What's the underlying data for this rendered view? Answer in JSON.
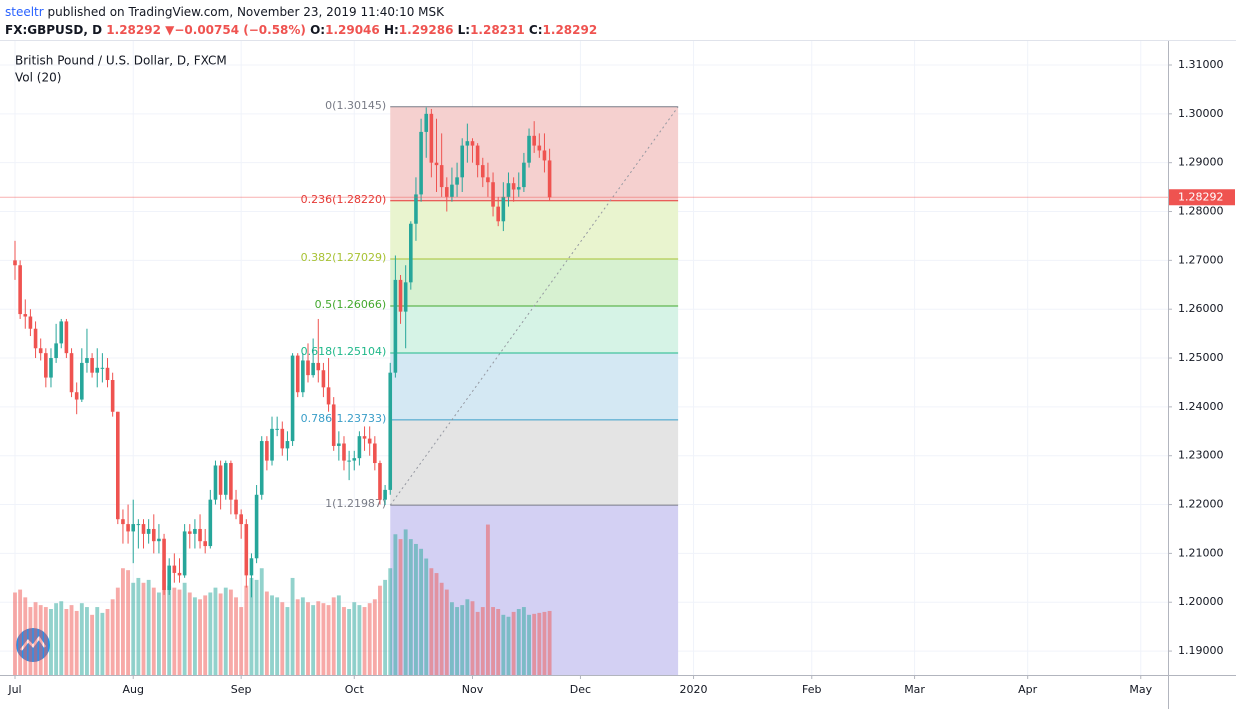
{
  "header": {
    "author": "steeltr",
    "published": "published on TradingView.com, November 23, 2019 11:40:10 MSK",
    "symbol": "FX:GBPUSD, D",
    "last": "1.28292",
    "arrow": "▼",
    "change": "−0.00754 (−0.58%)",
    "o_label": "O:",
    "o": "1.29046",
    "h_label": "H:",
    "h": "1.29286",
    "l_label": "L:",
    "l": "1.28231",
    "c_label": "C:",
    "c": "1.28292"
  },
  "chart_data": {
    "type": "candlestick",
    "title": "British Pound / U.S. Dollar, D, FXCM",
    "volume_title": "Vol (20)",
    "up_color": "#26a69a",
    "down_color": "#ef5350",
    "volume_up_color": "rgba(38,166,154,0.5)",
    "volume_down_color": "rgba(239,83,80,0.5)",
    "open": [
      1.27,
      1.269,
      1.259,
      1.2585,
      1.256,
      1.252,
      1.251,
      1.246,
      1.25,
      1.253,
      1.2575,
      1.251,
      1.243,
      1.2415,
      1.249,
      1.25,
      1.247,
      1.248,
      1.248,
      1.2455,
      1.239,
      1.217,
      1.216,
      1.2145,
      1.216,
      1.216,
      1.214,
      1.215,
      1.2125,
      1.213,
      1.2025,
      1.2075,
      1.206,
      1.2055,
      1.2145,
      1.214,
      1.215,
      1.2125,
      1.2115,
      1.221,
      1.228,
      1.222,
      1.2285,
      1.221,
      1.218,
      1.216,
      1.2055,
      1.209,
      1.222,
      1.233,
      1.229,
      1.2355,
      1.2355,
      1.2315,
      1.233,
      1.2505,
      1.243,
      1.2495,
      1.2465,
      1.249,
      1.2475,
      1.244,
      1.2405,
      1.232,
      1.2325,
      1.229,
      1.229,
      1.2295,
      1.234,
      1.2335,
      1.2325,
      1.2285,
      1.221,
      1.223,
      1.247,
      1.266,
      1.2595,
      1.2655,
      1.2775,
      1.2835,
      1.2963,
      1.3,
      1.29,
      1.2895,
      1.285,
      1.283,
      1.2855,
      1.287,
      1.2935,
      1.2944,
      1.2935,
      1.2895,
      1.287,
      1.286,
      1.281,
      1.278,
      1.283,
      1.2858,
      1.2845,
      1.285,
      1.29,
      1.2955,
      1.2935,
      1.2925,
      1.29046
    ],
    "high": [
      1.274,
      1.27,
      1.262,
      1.26,
      1.2575,
      1.254,
      1.252,
      1.252,
      1.257,
      1.258,
      1.258,
      1.252,
      1.245,
      1.252,
      1.256,
      1.251,
      1.252,
      1.251,
      1.25,
      1.247,
      1.239,
      1.219,
      1.22,
      1.221,
      1.217,
      1.217,
      1.217,
      1.218,
      1.216,
      1.214,
      1.209,
      1.21,
      1.209,
      1.216,
      1.216,
      1.217,
      1.218,
      1.215,
      1.223,
      1.229,
      1.229,
      1.229,
      1.229,
      1.223,
      1.219,
      1.217,
      1.21,
      1.224,
      1.234,
      1.234,
      1.238,
      1.238,
      1.237,
      1.235,
      1.251,
      1.251,
      1.251,
      1.253,
      1.254,
      1.258,
      1.249,
      1.25,
      1.242,
      1.235,
      1.234,
      1.231,
      1.231,
      1.235,
      1.236,
      1.236,
      1.234,
      1.229,
      1.224,
      1.249,
      1.271,
      1.267,
      1.269,
      1.278,
      1.287,
      1.299,
      1.3013,
      1.301,
      1.299,
      1.296,
      1.287,
      1.289,
      1.29,
      1.295,
      1.298,
      1.295,
      1.294,
      1.291,
      1.29,
      1.288,
      1.283,
      1.286,
      1.288,
      1.287,
      1.288,
      1.292,
      1.297,
      1.2985,
      1.296,
      1.296,
      1.29286
    ],
    "low": [
      1.266,
      1.258,
      1.256,
      1.2545,
      1.25,
      1.2495,
      1.244,
      1.244,
      1.249,
      1.252,
      1.25,
      1.242,
      1.2385,
      1.241,
      1.247,
      1.246,
      1.244,
      1.245,
      1.244,
      1.238,
      1.216,
      1.212,
      1.212,
      1.208,
      1.211,
      1.211,
      1.212,
      1.21,
      1.21,
      1.2015,
      1.2015,
      1.204,
      1.204,
      1.205,
      1.211,
      1.211,
      1.211,
      1.21,
      1.211,
      1.22,
      1.219,
      1.221,
      1.218,
      1.217,
      1.213,
      1.203,
      1.201,
      1.208,
      1.221,
      1.227,
      1.228,
      1.234,
      1.23,
      1.229,
      1.232,
      1.242,
      1.242,
      1.245,
      1.246,
      1.245,
      1.242,
      1.239,
      1.231,
      1.229,
      1.227,
      1.225,
      1.227,
      1.228,
      1.231,
      1.23,
      1.227,
      1.22,
      1.2199,
      1.222,
      1.246,
      1.257,
      1.252,
      1.264,
      1.274,
      1.282,
      1.291,
      1.287,
      1.284,
      1.283,
      1.28,
      1.282,
      1.283,
      1.284,
      1.29,
      1.29,
      1.287,
      1.285,
      1.283,
      1.279,
      1.277,
      1.276,
      1.281,
      1.282,
      1.283,
      1.284,
      1.289,
      1.292,
      1.291,
      1.288,
      1.28231
    ],
    "close": [
      1.269,
      1.259,
      1.2585,
      1.256,
      1.252,
      1.251,
      1.246,
      1.25,
      1.253,
      1.2575,
      1.251,
      1.243,
      1.2415,
      1.249,
      1.25,
      1.247,
      1.248,
      1.248,
      1.2455,
      1.239,
      1.217,
      1.216,
      1.2145,
      1.216,
      1.216,
      1.214,
      1.215,
      1.2125,
      1.213,
      1.2025,
      1.2075,
      1.206,
      1.2055,
      1.2145,
      1.214,
      1.215,
      1.2125,
      1.2115,
      1.221,
      1.228,
      1.222,
      1.2285,
      1.221,
      1.218,
      1.216,
      1.2055,
      1.209,
      1.222,
      1.233,
      1.229,
      1.2355,
      1.2355,
      1.2315,
      1.233,
      1.2505,
      1.243,
      1.2495,
      1.2465,
      1.249,
      1.2475,
      1.244,
      1.2405,
      1.232,
      1.2325,
      1.229,
      1.229,
      1.2295,
      1.234,
      1.2335,
      1.2325,
      1.2285,
      1.221,
      1.223,
      1.247,
      1.266,
      1.2595,
      1.2655,
      1.2775,
      1.2835,
      1.2963,
      1.3,
      1.29,
      1.2895,
      1.285,
      1.283,
      1.2855,
      1.287,
      1.2935,
      1.2944,
      1.2935,
      1.2895,
      1.287,
      1.286,
      1.281,
      1.278,
      1.283,
      1.2858,
      1.2845,
      1.285,
      1.29,
      1.2955,
      1.2935,
      1.2925,
      1.29046,
      1.28292
    ],
    "volume": [
      85,
      88,
      80,
      70,
      75,
      72,
      70,
      68,
      74,
      76,
      68,
      72,
      66,
      74,
      70,
      62,
      70,
      64,
      68,
      78,
      90,
      110,
      108,
      95,
      100,
      95,
      98,
      90,
      85,
      108,
      92,
      90,
      88,
      95,
      85,
      80,
      78,
      82,
      85,
      90,
      84,
      90,
      88,
      80,
      70,
      92,
      100,
      98,
      110,
      86,
      82,
      80,
      75,
      70,
      100,
      78,
      80,
      75,
      72,
      76,
      74,
      72,
      80,
      82,
      70,
      68,
      75,
      72,
      70,
      74,
      78,
      92,
      98,
      110,
      145,
      140,
      150,
      140,
      135,
      130,
      120,
      110,
      105,
      95,
      88,
      75,
      70,
      72,
      78,
      76,
      65,
      70,
      155,
      70,
      68,
      62,
      60,
      65,
      68,
      70,
      62,
      63,
      64,
      65,
      66
    ],
    "volume_ylim": [
      0,
      170
    ],
    "xlim": [
      -1.36,
      224.3
    ],
    "xticks": [
      {
        "value": 0,
        "label": "Jul"
      },
      {
        "value": 23,
        "label": "Aug"
      },
      {
        "value": 44,
        "label": "Sep"
      },
      {
        "value": 66,
        "label": "Oct"
      },
      {
        "value": 89,
        "label": "Nov"
      },
      {
        "value": 110,
        "label": "Dec"
      },
      {
        "value": 132,
        "label": "2020"
      },
      {
        "value": 155,
        "label": "Feb"
      },
      {
        "value": 175,
        "label": "Mar"
      },
      {
        "value": 197,
        "label": "Apr"
      },
      {
        "value": 219,
        "label": "May"
      }
    ],
    "ylim": [
      1.1851,
      1.3143
    ],
    "yticks": [
      {
        "value": 1.19,
        "label": "1.19000"
      },
      {
        "value": 1.2,
        "label": "1.20000"
      },
      {
        "value": 1.21,
        "label": "1.21000"
      },
      {
        "value": 1.22,
        "label": "1.22000"
      },
      {
        "value": 1.23,
        "label": "1.23000"
      },
      {
        "value": 1.24,
        "label": "1.24000"
      },
      {
        "value": 1.25,
        "label": "1.25000"
      },
      {
        "value": 1.26,
        "label": "1.26000"
      },
      {
        "value": 1.27,
        "label": "1.27000"
      },
      {
        "value": 1.28,
        "label": "1.28000"
      },
      {
        "value": 1.29,
        "label": "1.29000"
      },
      {
        "value": 1.3,
        "label": "1.30000"
      },
      {
        "value": 1.31,
        "label": "1.31000"
      }
    ],
    "last_price": {
      "value": 1.28292,
      "label": "1.28292",
      "color": "#ef5350"
    },
    "fib": {
      "x_range": [
        73,
        129
      ],
      "levels": [
        {
          "level": 0,
          "price": 1.30145,
          "label": "0(1.30145)",
          "color": "#787b86",
          "fill": "#f5d0cf"
        },
        {
          "level": 0.236,
          "price": 1.2822,
          "label": "0.236(1.28220)",
          "color": "#e53935",
          "fill": "#f5d0cf"
        },
        {
          "level": 0.382,
          "price": 1.27029,
          "label": "0.382(1.27029)",
          "color": "#a8c234",
          "fill": "#e9f4cf"
        },
        {
          "level": 0.5,
          "price": 1.26066,
          "label": "0.5(1.26066)",
          "color": "#43a82f",
          "fill": "#d7f1d1"
        },
        {
          "level": 0.618,
          "price": 1.25104,
          "label": "0.618(1.25104)",
          "color": "#1fb88a",
          "fill": "#d6f3e6"
        },
        {
          "level": 0.786,
          "price": 1.23733,
          "label": "0.786(1.23733)",
          "color": "#3a9ec8",
          "fill": "#d4e8f3"
        },
        {
          "level": 1,
          "price": 1.21987,
          "label": "1(1.21987)",
          "color": "#787b86",
          "fill": "#e4e4e4"
        }
      ]
    }
  }
}
